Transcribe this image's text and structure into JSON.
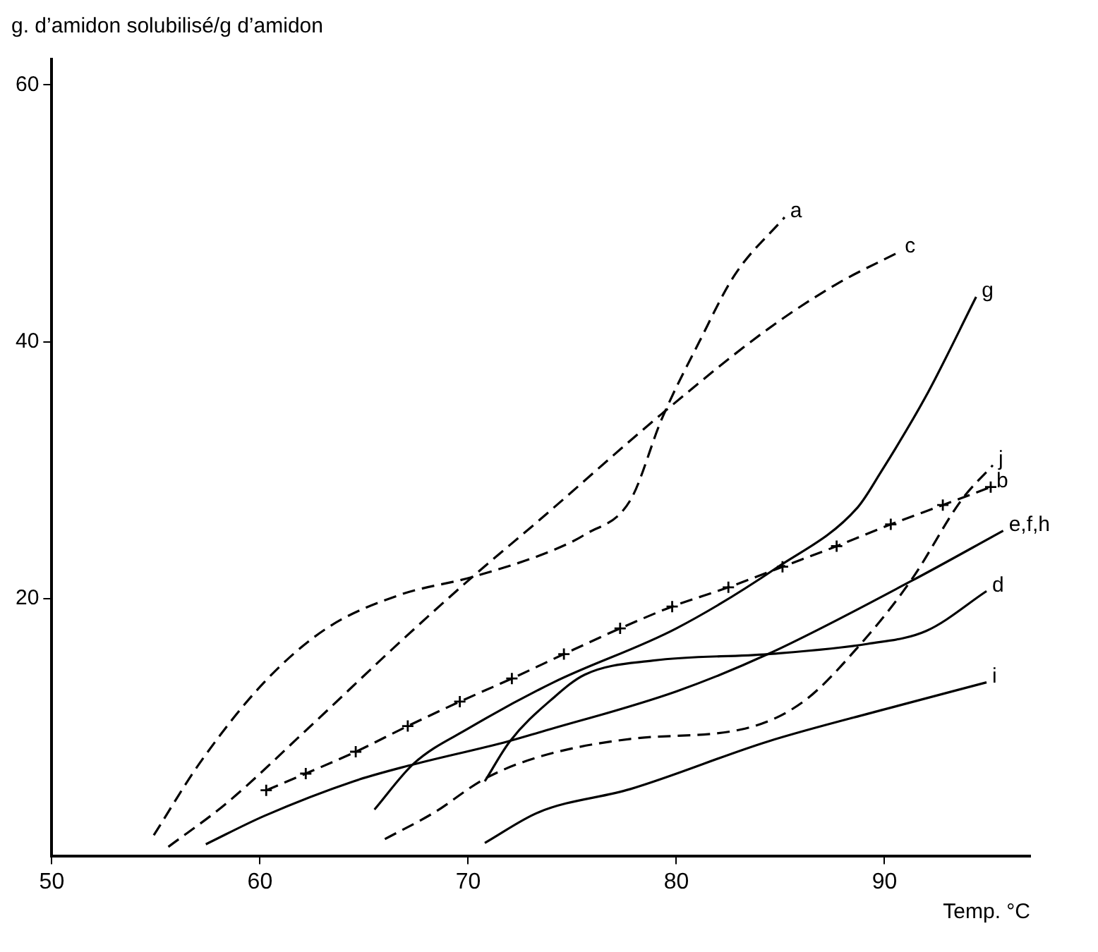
{
  "chart_data": {
    "type": "line",
    "xlabel": "Temp. °C",
    "ylabel": "g. d’amidon solubilisé/g d’amidon",
    "xlim": [
      50,
      97
    ],
    "ylim": [
      0,
      62
    ],
    "xticks": [
      50,
      60,
      70,
      80,
      90
    ],
    "yticks": [
      20,
      40,
      60
    ],
    "grid": false,
    "legend": false,
    "series": [
      {
        "name": "a",
        "color": "#000000",
        "line_style": "dashed",
        "marker": "none",
        "x": [
          54.9,
          57.1,
          60.2,
          63.2,
          66.7,
          70.2,
          74.1,
          75.6,
          77.8,
          79.3,
          81.1,
          82.8,
          85.2
        ],
        "values": [
          1.6,
          7.2,
          13.5,
          17.7,
          20.3,
          21.7,
          23.8,
          25.0,
          27.7,
          34.0,
          40.0,
          45.2,
          49.7
        ]
      },
      {
        "name": "c",
        "color": "#000000",
        "line_style": "dashed",
        "marker": "none",
        "x": [
          55.6,
          58.4,
          62.3,
          66.7,
          70.2,
          73.4,
          79.3,
          84.4,
          87.7,
          90.7
        ],
        "values": [
          0.7,
          4.1,
          9.9,
          16.6,
          21.7,
          26.1,
          34.4,
          41.0,
          44.5,
          47.0
        ]
      },
      {
        "name": "g",
        "color": "#000000",
        "line_style": "solid",
        "marker": "none",
        "x": [
          65.5,
          67.4,
          70.0,
          74.1,
          80.0,
          84.8,
          88.7,
          89.8,
          92.0,
          94.4
        ],
        "values": [
          3.6,
          7.2,
          9.9,
          13.5,
          17.7,
          22.4,
          27.1,
          29.8,
          35.8,
          43.5
        ]
      },
      {
        "name": "j",
        "color": "#000000",
        "line_style": "dashed",
        "marker": "none",
        "x": [
          66.0,
          68.4,
          70.8,
          73.4,
          77.8,
          83.3,
          86.1,
          88.7,
          91.3,
          93.7,
          95.2
        ],
        "values": [
          1.3,
          3.4,
          6.0,
          7.7,
          9.1,
          9.9,
          12.0,
          16.2,
          21.5,
          27.7,
          30.4
        ]
      },
      {
        "name": "b",
        "color": "#000000",
        "line_style": "dashed",
        "marker": "cross",
        "x": [
          60.3,
          62.2,
          64.6,
          67.1,
          69.6,
          72.1,
          74.6,
          77.3,
          79.8,
          82.5,
          85.1,
          87.7,
          90.3,
          92.8,
          95.1
        ],
        "values": [
          5.1,
          6.4,
          8.1,
          10.1,
          12.0,
          13.8,
          15.7,
          17.7,
          19.4,
          20.9,
          22.5,
          24.1,
          25.8,
          27.3,
          28.7
        ]
      },
      {
        "name": "e,f,h",
        "color": "#000000",
        "line_style": "solid",
        "marker": "none",
        "x": [
          57.4,
          60.2,
          64.5,
          67.1,
          71.9,
          73.4,
          80.0,
          84.4,
          91.3,
          95.7
        ],
        "values": [
          0.9,
          3.1,
          5.8,
          7.0,
          8.9,
          9.6,
          12.8,
          15.7,
          21.4,
          25.3
        ]
      },
      {
        "name": "d",
        "color": "#000000",
        "line_style": "solid",
        "marker": "none",
        "x": [
          70.8,
          72.0,
          74.1,
          75.6,
          78.9,
          84.4,
          89.2,
          92.0,
          94.9
        ],
        "values": [
          5.8,
          8.9,
          12.3,
          14.1,
          15.2,
          15.7,
          16.5,
          17.5,
          20.6
        ]
      },
      {
        "name": "i",
        "color": "#000000",
        "line_style": "solid",
        "marker": "none",
        "x": [
          70.8,
          73.4,
          77.8,
          84.4,
          90.0,
          94.9
        ],
        "values": [
          1.0,
          3.4,
          5.2,
          8.9,
          11.4,
          13.5
        ]
      }
    ]
  }
}
